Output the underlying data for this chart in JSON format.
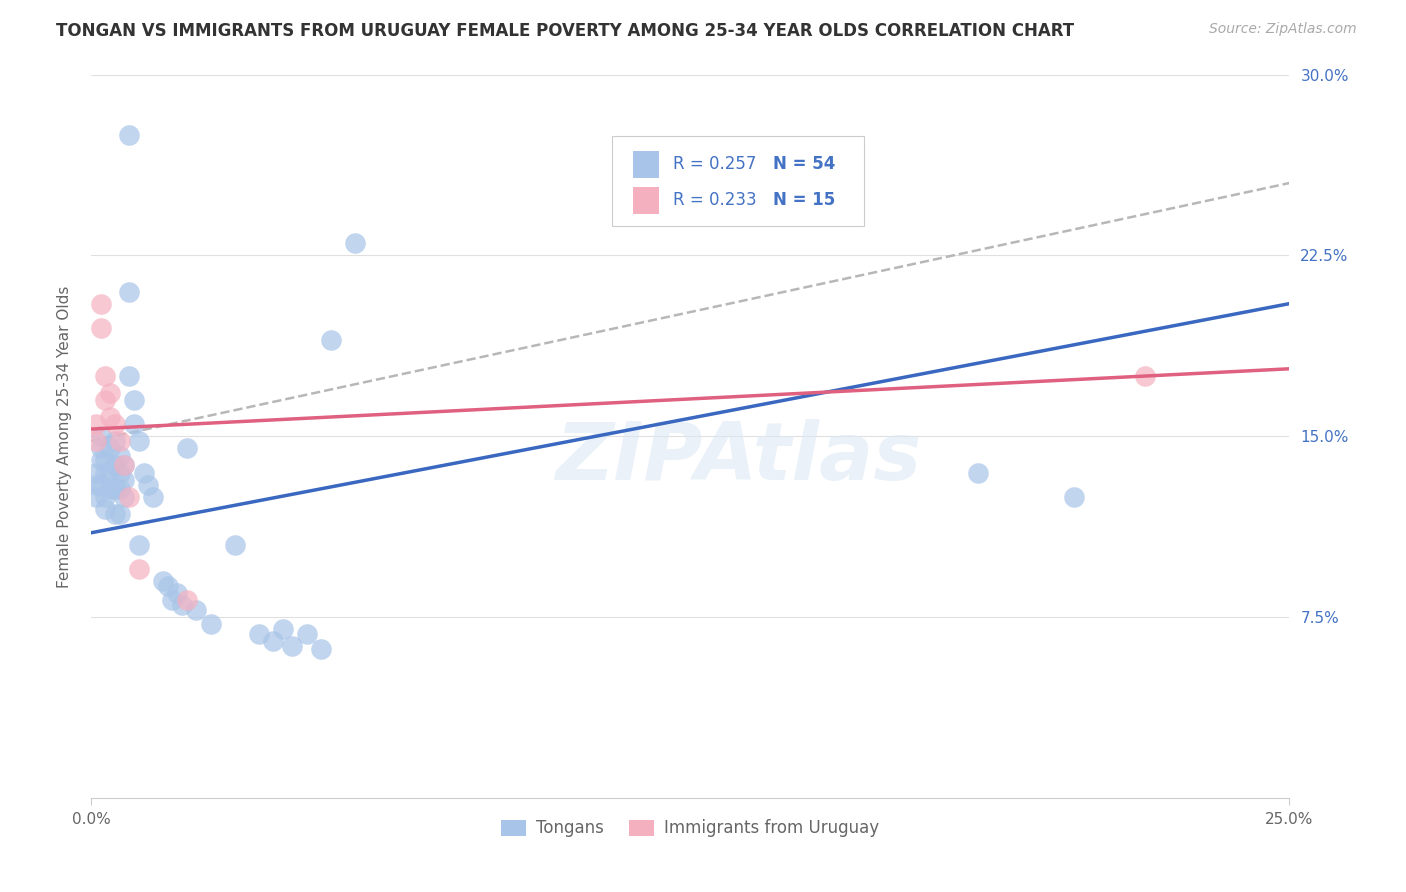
{
  "title": "TONGAN VS IMMIGRANTS FROM URUGUAY FEMALE POVERTY AMONG 25-34 YEAR OLDS CORRELATION CHART",
  "source": "Source: ZipAtlas.com",
  "ylabel": "Female Poverty Among 25-34 Year Olds",
  "xlim": [
    0.0,
    0.25
  ],
  "ylim": [
    0.0,
    0.3
  ],
  "xtick_positions": [
    0.0,
    0.25
  ],
  "xtick_labels": [
    "0.0%",
    "25.0%"
  ],
  "ytick_positions": [
    0.075,
    0.15,
    0.225,
    0.3
  ],
  "ytick_labels": [
    "7.5%",
    "15.0%",
    "22.5%",
    "30.0%"
  ],
  "blue_scatter_color": "#a8c4e8",
  "pink_scatter_color": "#f5b0c0",
  "blue_line_color": "#3a68c0",
  "pink_line_color": "#e06080",
  "dash_line_color": "#b0b0b0",
  "watermark": "ZIPAtlas",
  "watermark_color": "#dce8f5",
  "R_blue": "0.257",
  "N_blue": "54",
  "R_pink": "0.233",
  "N_pink": "15",
  "legend_label_blue": "Tongans",
  "legend_label_pink": "Immigrants from Uruguay",
  "bg_color": "#ffffff",
  "grid_color": "#e0e0e0",
  "tick_color": "#4472c4",
  "label_color": "#666666",
  "title_color": "#333333",
  "source_color": "#aaaaaa",
  "blue_x": [
    0.001,
    0.001,
    0.001,
    0.002,
    0.002,
    0.002,
    0.002,
    0.003,
    0.003,
    0.003,
    0.003,
    0.004,
    0.004,
    0.004,
    0.005,
    0.005,
    0.005,
    0.005,
    0.006,
    0.006,
    0.006,
    0.006,
    0.007,
    0.007,
    0.007,
    0.008,
    0.008,
    0.008,
    0.009,
    0.009,
    0.01,
    0.01,
    0.011,
    0.012,
    0.013,
    0.015,
    0.016,
    0.017,
    0.018,
    0.019,
    0.02,
    0.022,
    0.025,
    0.03,
    0.035,
    0.038,
    0.04,
    0.042,
    0.045,
    0.048,
    0.05,
    0.055,
    0.185,
    0.205
  ],
  "blue_y": [
    0.135,
    0.13,
    0.125,
    0.15,
    0.145,
    0.14,
    0.13,
    0.14,
    0.135,
    0.125,
    0.12,
    0.145,
    0.135,
    0.128,
    0.148,
    0.138,
    0.128,
    0.118,
    0.142,
    0.135,
    0.128,
    0.118,
    0.138,
    0.132,
    0.125,
    0.275,
    0.21,
    0.175,
    0.165,
    0.155,
    0.148,
    0.105,
    0.135,
    0.13,
    0.125,
    0.09,
    0.088,
    0.082,
    0.085,
    0.08,
    0.145,
    0.078,
    0.072,
    0.105,
    0.068,
    0.065,
    0.07,
    0.063,
    0.068,
    0.062,
    0.19,
    0.23,
    0.135,
    0.125
  ],
  "pink_x": [
    0.001,
    0.001,
    0.002,
    0.002,
    0.003,
    0.003,
    0.004,
    0.004,
    0.005,
    0.006,
    0.007,
    0.008,
    0.01,
    0.02,
    0.22
  ],
  "pink_y": [
    0.155,
    0.148,
    0.205,
    0.195,
    0.175,
    0.165,
    0.168,
    0.158,
    0.155,
    0.148,
    0.138,
    0.125,
    0.095,
    0.082,
    0.175
  ],
  "blue_trend_x0": 0.0,
  "blue_trend_y0": 0.11,
  "blue_trend_x1": 0.25,
  "blue_trend_y1": 0.205,
  "pink_trend_x0": 0.0,
  "pink_trend_y0": 0.153,
  "pink_trend_x1": 0.25,
  "pink_trend_y1": 0.178,
  "dash_trend_x0": 0.0,
  "dash_trend_y0": 0.148,
  "dash_trend_x1": 0.25,
  "dash_trend_y1": 0.255
}
